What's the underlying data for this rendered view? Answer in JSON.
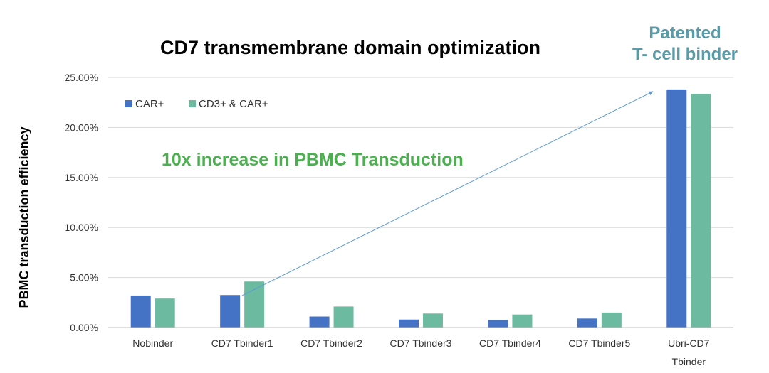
{
  "chart_data": {
    "type": "bar",
    "title": "CD7 transmembrane domain optimization",
    "ylabel": "PBMC transduction efficiency",
    "xlabel": "",
    "ylim": [
      0,
      0.25
    ],
    "yticks": [
      "0.00%",
      "5.00%",
      "10.00%",
      "15.00%",
      "20.00%",
      "25.00%"
    ],
    "ytick_values": [
      0,
      0.05,
      0.1,
      0.15,
      0.2,
      0.25
    ],
    "grid": true,
    "legend_position": "top-left",
    "categories": [
      [
        "Nobinder"
      ],
      [
        "CD7 Tbinder1"
      ],
      [
        "CD7 Tbinder2"
      ],
      [
        "CD7 Tbinder3"
      ],
      [
        "CD7 Tbinder4"
      ],
      [
        "CD7 Tbinder5"
      ],
      [
        "Ubri-CD7",
        "Tbinder"
      ]
    ],
    "series": [
      {
        "name": "CAR+",
        "color": "#4472C4",
        "values": [
          0.032,
          0.0325,
          0.011,
          0.008,
          0.0075,
          0.009,
          0.238
        ]
      },
      {
        "name": "CD3+ & CAR+",
        "color": "#6CBBA0",
        "values": [
          0.029,
          0.046,
          0.021,
          0.014,
          0.013,
          0.015,
          0.2335
        ]
      }
    ],
    "annotations": {
      "increase_text": "10x increase in PBMC Transduction",
      "increase_color": "#4CAF50",
      "patent_line1": "Patented",
      "patent_line2": "T- cell binder",
      "patent_color": "#5A9BA8",
      "arrow_from": {
        "category": 1,
        "value": 0.032
      },
      "arrow_to": {
        "category": 6,
        "value": 0.236
      },
      "arrow_color": "#5B9BD5"
    }
  }
}
